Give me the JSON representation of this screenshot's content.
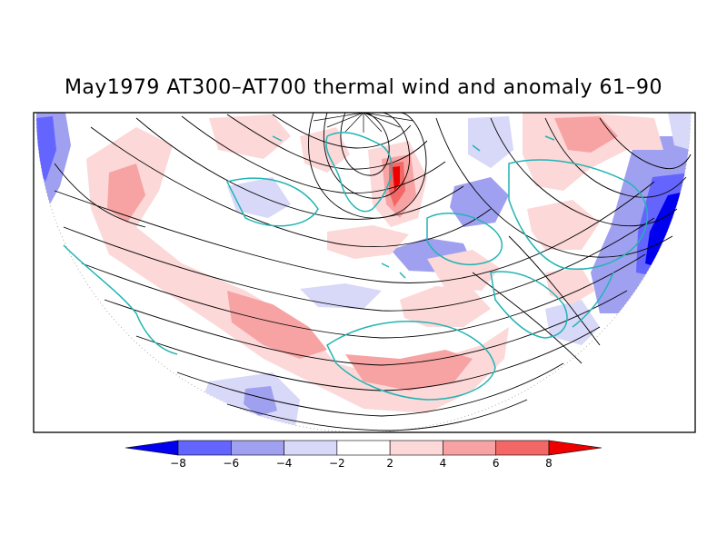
{
  "title": "May1979 AT300–AT700 thermal wind and anomaly 61–90",
  "colorbar": {
    "tick_labels": [
      "−8",
      "−6",
      "−4",
      "−2",
      "2",
      "4",
      "6",
      "8"
    ],
    "colors": [
      "#0000ee",
      "#6464ff",
      "#a0a0f0",
      "#d8d8f8",
      "#ffffff",
      "#fcd8d8",
      "#f7a3a3",
      "#f46767",
      "#ee0000"
    ]
  },
  "map": {
    "projection": "north polar stereographic (lower half)",
    "coastline_color": "#22b4b4",
    "streamline_color": "#000000"
  }
}
